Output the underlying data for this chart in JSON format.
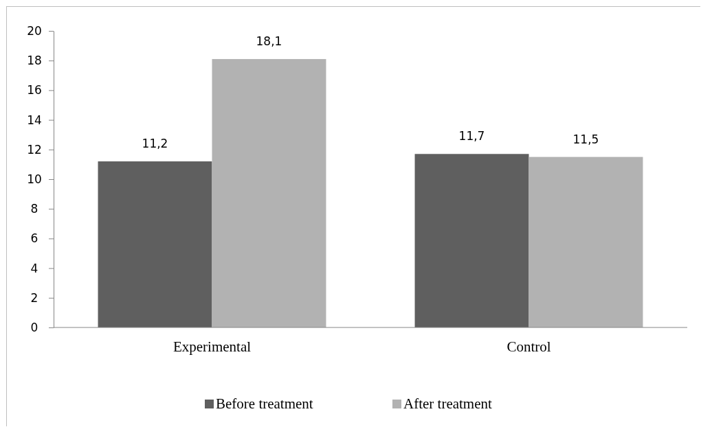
{
  "chart_data": {
    "type": "bar",
    "categories": [
      "Experimental",
      "Control"
    ],
    "series": [
      {
        "name": "Before treatment",
        "color": "#5f5f5f",
        "values": [
          11.2,
          11.7
        ],
        "value_labels": [
          "11,2",
          "11,7"
        ]
      },
      {
        "name": "After treatment",
        "color": "#b2b2b2",
        "values": [
          18.1,
          11.5
        ],
        "value_labels": [
          "18,1",
          "11,5"
        ]
      }
    ],
    "ylim": [
      0,
      20
    ],
    "yticks": [
      0,
      2,
      4,
      6,
      8,
      10,
      12,
      14,
      16,
      18,
      20
    ],
    "grid": false,
    "legend": "bottom"
  }
}
